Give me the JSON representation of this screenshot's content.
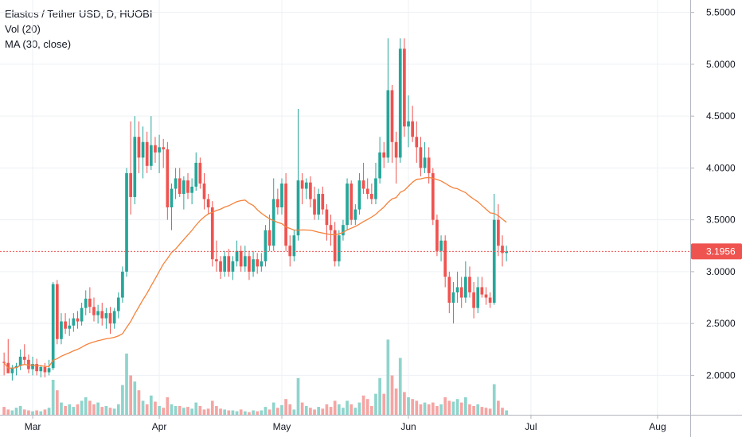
{
  "legend": {
    "title": "Elastos / Tether USD, D, HUOBI",
    "volume": "Vol (20)",
    "ma": "MA (30, close)"
  },
  "colors": {
    "up": "#26a69a",
    "down": "#ef5350",
    "volume_up": "#8fd4cc",
    "volume_down": "#f5a5a3",
    "ma": "#f5823b",
    "last_price": "#ef5350",
    "grid": "#edf0f5"
  },
  "last_price_label": "3.1956",
  "chart_data": {
    "type": "candlestick",
    "title": "Elastos / Tether USD, D, HUOBI",
    "indicators": [
      "Vol (20)",
      "MA (30, close)"
    ],
    "y_axis": {
      "ticks": [
        "5.5000",
        "5.0000",
        "4.5000",
        "4.0000",
        "3.5000",
        "3.0000",
        "2.5000",
        "2.0000"
      ],
      "range": [
        1.62,
        5.62
      ]
    },
    "x_axis": {
      "ticks": [
        {
          "label": "Mar",
          "day": 29
        },
        {
          "label": "Apr",
          "day": 60
        },
        {
          "label": "May",
          "day": 90
        },
        {
          "label": "Jun",
          "day": 121
        },
        {
          "label": "Jul",
          "day": 151
        },
        {
          "label": "Aug",
          "day": 182
        }
      ],
      "range_days": [
        21,
        190
      ]
    },
    "first_day": 22,
    "last_price": 3.1956,
    "ohlc": [
      [
        2.13,
        2.22,
        2.0,
        2.12
      ],
      [
        2.12,
        2.35,
        2.05,
        2.02
      ],
      [
        2.02,
        2.1,
        1.95,
        2.07
      ],
      [
        2.07,
        2.12,
        2.0,
        2.09
      ],
      [
        2.09,
        2.25,
        2.05,
        2.18
      ],
      [
        2.18,
        2.3,
        2.1,
        2.15
      ],
      [
        2.15,
        2.2,
        2.02,
        2.06
      ],
      [
        2.06,
        2.18,
        2.0,
        2.11
      ],
      [
        2.11,
        2.16,
        2.0,
        2.04
      ],
      [
        2.04,
        2.1,
        1.98,
        2.08
      ],
      [
        2.08,
        2.12,
        1.98,
        2.03
      ],
      [
        2.03,
        2.15,
        2.0,
        2.07
      ],
      [
        2.07,
        2.9,
        2.05,
        2.88
      ],
      [
        2.88,
        2.92,
        2.3,
        2.35
      ],
      [
        2.35,
        2.6,
        2.3,
        2.52
      ],
      [
        2.52,
        2.6,
        2.4,
        2.45
      ],
      [
        2.45,
        2.55,
        2.38,
        2.48
      ],
      [
        2.48,
        2.6,
        2.42,
        2.55
      ],
      [
        2.55,
        2.62,
        2.45,
        2.52
      ],
      [
        2.52,
        2.7,
        2.48,
        2.65
      ],
      [
        2.65,
        2.82,
        2.58,
        2.74
      ],
      [
        2.74,
        2.85,
        2.6,
        2.66
      ],
      [
        2.66,
        2.75,
        2.52,
        2.58
      ],
      [
        2.58,
        2.68,
        2.5,
        2.62
      ],
      [
        2.62,
        2.7,
        2.48,
        2.55
      ],
      [
        2.55,
        2.65,
        2.45,
        2.6
      ],
      [
        2.6,
        2.66,
        2.4,
        2.5
      ],
      [
        2.5,
        2.65,
        2.45,
        2.62
      ],
      [
        2.62,
        2.8,
        2.55,
        2.75
      ],
      [
        2.75,
        3.05,
        2.7,
        3.0
      ],
      [
        3.0,
        4.0,
        2.95,
        3.95
      ],
      [
        3.95,
        4.45,
        3.55,
        3.72
      ],
      [
        3.72,
        4.5,
        3.65,
        4.3
      ],
      [
        4.3,
        4.45,
        3.95,
        4.1
      ],
      [
        4.1,
        4.4,
        3.9,
        4.25
      ],
      [
        4.25,
        4.35,
        3.95,
        4.02
      ],
      [
        4.02,
        4.5,
        3.98,
        4.22
      ],
      [
        4.22,
        4.3,
        4.05,
        4.15
      ],
      [
        4.15,
        4.32,
        3.95,
        4.2
      ],
      [
        4.2,
        4.28,
        4.0,
        4.18
      ],
      [
        4.18,
        4.25,
        3.5,
        3.62
      ],
      [
        3.62,
        3.85,
        3.4,
        3.8
      ],
      [
        3.8,
        4.0,
        3.7,
        3.9
      ],
      [
        3.9,
        4.0,
        3.72,
        3.75
      ],
      [
        3.75,
        3.92,
        3.6,
        3.88
      ],
      [
        3.88,
        3.95,
        3.7,
        3.76
      ],
      [
        3.76,
        3.9,
        3.65,
        3.82
      ],
      [
        3.82,
        4.15,
        3.78,
        4.05
      ],
      [
        4.05,
        4.1,
        3.8,
        3.85
      ],
      [
        3.85,
        3.95,
        3.6,
        3.7
      ],
      [
        3.7,
        3.75,
        3.55,
        3.62
      ],
      [
        3.62,
        3.68,
        3.05,
        3.12
      ],
      [
        3.12,
        3.3,
        3.0,
        3.1
      ],
      [
        3.1,
        3.15,
        2.93,
        3.0
      ],
      [
        3.0,
        3.2,
        2.95,
        3.15
      ],
      [
        3.15,
        3.22,
        2.95,
        3.0
      ],
      [
        3.0,
        3.15,
        2.92,
        3.1
      ],
      [
        3.1,
        3.3,
        3.05,
        3.2
      ],
      [
        3.2,
        3.25,
        3.0,
        3.05
      ],
      [
        3.05,
        3.25,
        3.0,
        3.15
      ],
      [
        3.15,
        3.2,
        2.92,
        3.0
      ],
      [
        3.0,
        3.2,
        2.95,
        3.12
      ],
      [
        3.12,
        3.18,
        2.98,
        3.05
      ],
      [
        3.05,
        3.18,
        3.0,
        3.1
      ],
      [
        3.1,
        3.45,
        3.05,
        3.4
      ],
      [
        3.4,
        3.55,
        3.2,
        3.25
      ],
      [
        3.25,
        3.9,
        3.2,
        3.7
      ],
      [
        3.7,
        3.8,
        3.55,
        3.62
      ],
      [
        3.62,
        3.9,
        3.55,
        3.85
      ],
      [
        3.85,
        3.95,
        3.2,
        3.25
      ],
      [
        3.25,
        3.35,
        3.05,
        3.15
      ],
      [
        3.15,
        3.4,
        3.1,
        3.35
      ],
      [
        3.35,
        4.57,
        3.3,
        3.88
      ],
      [
        3.88,
        3.95,
        3.65,
        3.8
      ],
      [
        3.8,
        3.9,
        3.7,
        3.86
      ],
      [
        3.86,
        3.92,
        3.62,
        3.7
      ],
      [
        3.7,
        3.82,
        3.5,
        3.55
      ],
      [
        3.55,
        3.8,
        3.5,
        3.75
      ],
      [
        3.75,
        3.82,
        3.55,
        3.6
      ],
      [
        3.6,
        3.65,
        3.3,
        3.45
      ],
      [
        3.45,
        3.55,
        3.25,
        3.4
      ],
      [
        3.4,
        3.48,
        3.05,
        3.1
      ],
      [
        3.1,
        3.4,
        3.05,
        3.35
      ],
      [
        3.35,
        3.5,
        3.3,
        3.45
      ],
      [
        3.45,
        3.9,
        3.4,
        3.85
      ],
      [
        3.85,
        3.88,
        3.45,
        3.5
      ],
      [
        3.5,
        3.65,
        3.45,
        3.6
      ],
      [
        3.6,
        3.95,
        3.55,
        3.88
      ],
      [
        3.88,
        4.05,
        3.75,
        3.8
      ],
      [
        3.8,
        3.9,
        3.7,
        3.75
      ],
      [
        3.75,
        3.85,
        3.65,
        3.7
      ],
      [
        3.7,
        4.05,
        3.65,
        3.9
      ],
      [
        3.9,
        4.3,
        3.85,
        4.15
      ],
      [
        4.15,
        4.25,
        4.0,
        4.1
      ],
      [
        4.1,
        5.25,
        4.05,
        4.75
      ],
      [
        4.75,
        4.8,
        4.05,
        4.25
      ],
      [
        4.25,
        4.35,
        3.85,
        4.1
      ],
      [
        4.1,
        5.25,
        4.05,
        5.15
      ],
      [
        5.15,
        5.25,
        4.3,
        4.4
      ],
      [
        4.4,
        4.7,
        4.2,
        4.45
      ],
      [
        4.45,
        4.6,
        4.25,
        4.3
      ],
      [
        4.3,
        4.45,
        4.05,
        4.2
      ],
      [
        4.2,
        4.3,
        3.92,
        4.0
      ],
      [
        4.0,
        4.25,
        3.95,
        4.1
      ],
      [
        4.1,
        4.2,
        3.85,
        3.95
      ],
      [
        3.95,
        4.0,
        3.45,
        3.5
      ],
      [
        3.5,
        3.55,
        3.15,
        3.2
      ],
      [
        3.2,
        3.35,
        3.1,
        3.3
      ],
      [
        3.3,
        3.35,
        2.85,
        2.95
      ],
      [
        2.95,
        3.0,
        2.6,
        2.7
      ],
      [
        2.7,
        2.9,
        2.5,
        2.8
      ],
      [
        2.8,
        3.0,
        2.7,
        2.85
      ],
      [
        2.85,
        2.95,
        2.65,
        2.75
      ],
      [
        2.75,
        3.1,
        2.7,
        2.95
      ],
      [
        2.95,
        3.05,
        2.75,
        2.8
      ],
      [
        2.8,
        2.9,
        2.55,
        2.65
      ],
      [
        2.65,
        2.95,
        2.6,
        2.85
      ],
      [
        2.85,
        2.95,
        2.75,
        2.78
      ],
      [
        2.78,
        2.85,
        2.68,
        2.75
      ],
      [
        2.75,
        2.8,
        2.65,
        2.7
      ],
      [
        2.7,
        3.75,
        2.68,
        3.5
      ],
      [
        3.5,
        3.65,
        3.15,
        3.25
      ],
      [
        3.25,
        3.35,
        3.05,
        3.18
      ],
      [
        3.18,
        3.25,
        3.1,
        3.1956
      ]
    ],
    "volume": [
      0.09,
      0.06,
      0.05,
      0.08,
      0.1,
      0.06,
      0.05,
      0.04,
      0.05,
      0.04,
      0.06,
      0.08,
      0.4,
      0.28,
      0.14,
      0.1,
      0.12,
      0.09,
      0.12,
      0.16,
      0.2,
      0.16,
      0.12,
      0.14,
      0.09,
      0.1,
      0.08,
      0.07,
      0.12,
      0.34,
      0.7,
      0.45,
      0.38,
      0.28,
      0.16,
      0.12,
      0.22,
      0.15,
      0.1,
      0.08,
      0.2,
      0.12,
      0.1,
      0.1,
      0.08,
      0.09,
      0.07,
      0.14,
      0.1,
      0.06,
      0.07,
      0.16,
      0.1,
      0.07,
      0.06,
      0.05,
      0.05,
      0.04,
      0.06,
      0.04,
      0.03,
      0.05,
      0.04,
      0.05,
      0.09,
      0.06,
      0.14,
      0.08,
      0.11,
      0.18,
      0.12,
      0.06,
      0.42,
      0.14,
      0.1,
      0.08,
      0.06,
      0.09,
      0.07,
      0.12,
      0.09,
      0.16,
      0.12,
      0.08,
      0.16,
      0.12,
      0.08,
      0.14,
      0.22,
      0.18,
      0.1,
      0.24,
      0.42,
      0.24,
      0.86,
      0.45,
      0.3,
      0.65,
      0.26,
      0.2,
      0.18,
      0.16,
      0.12,
      0.14,
      0.12,
      0.14,
      0.1,
      0.12,
      0.2,
      0.16,
      0.15,
      0.18,
      0.14,
      0.2,
      0.12,
      0.1,
      0.12,
      0.09,
      0.08,
      0.07,
      0.35,
      0.16,
      0.08,
      0.05
    ]
  }
}
